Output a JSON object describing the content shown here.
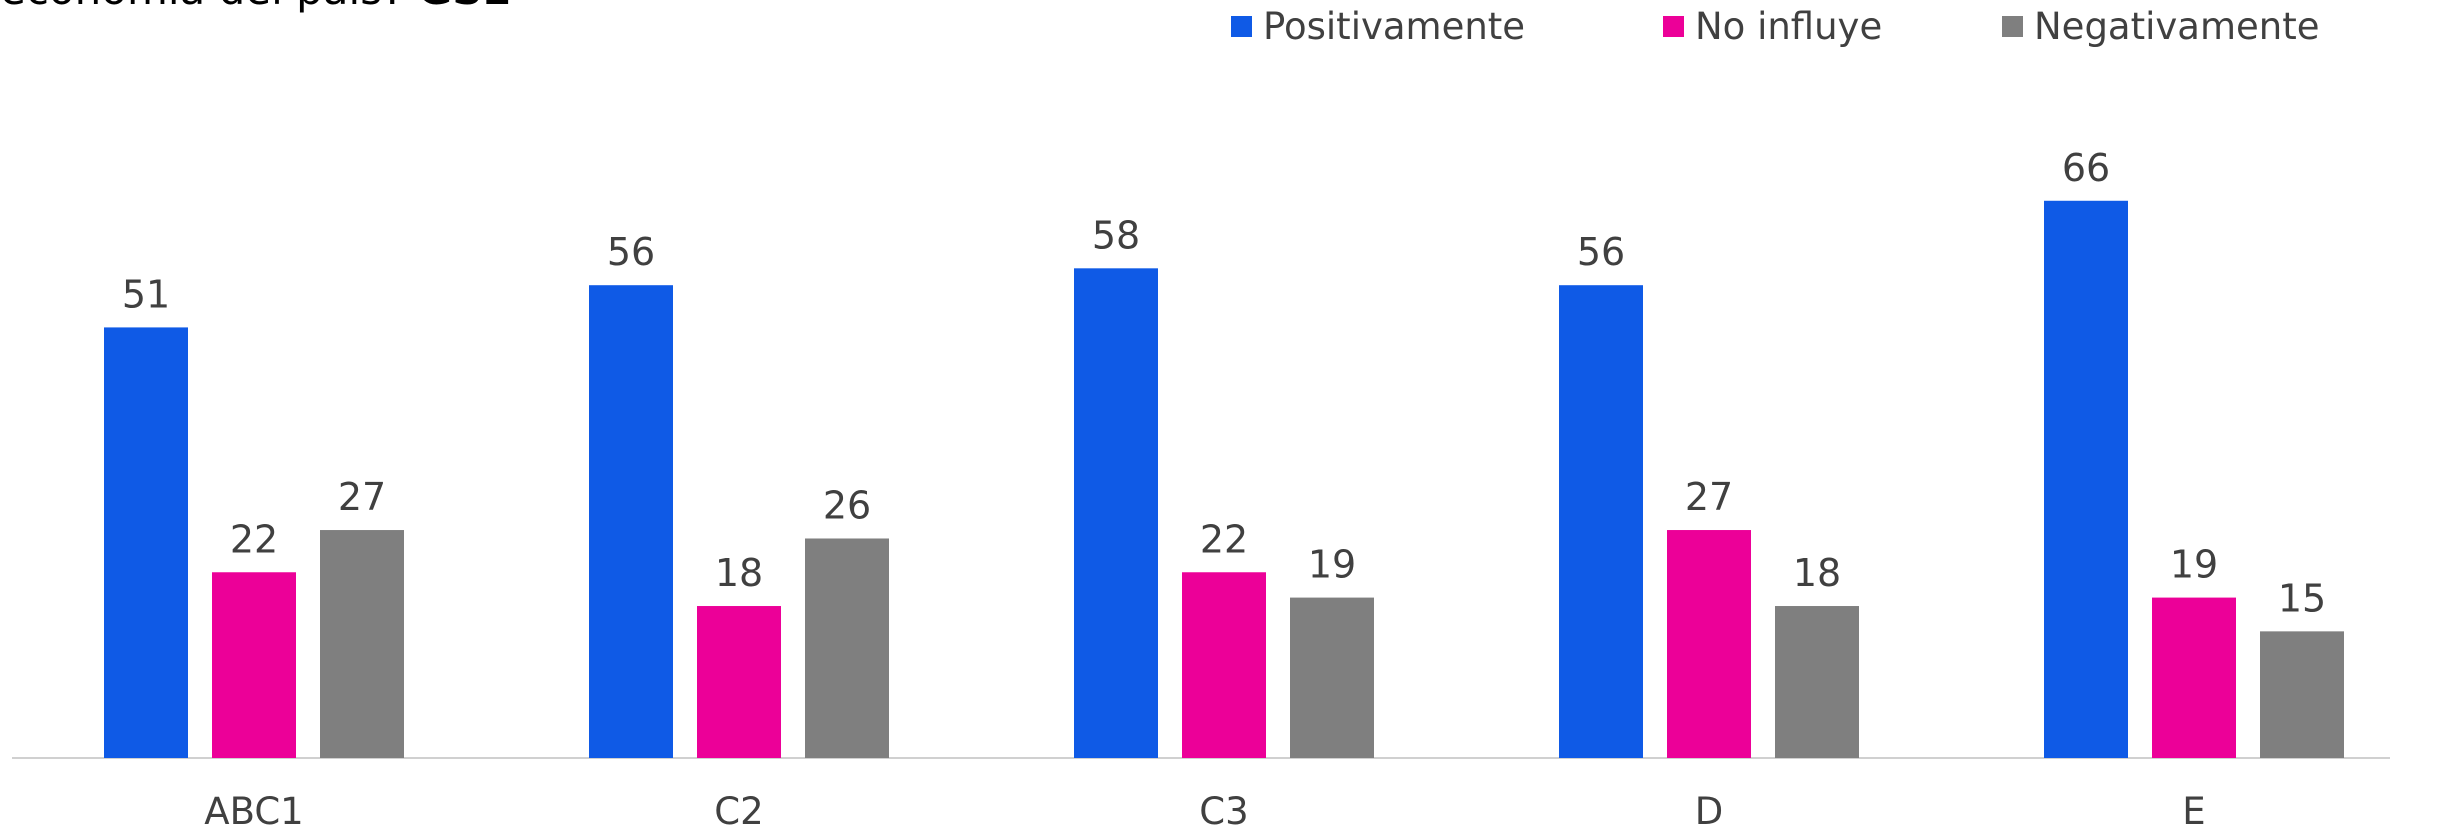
{
  "chart_data": {
    "type": "bar",
    "title": "economía del país?",
    "title_emphasis": "GSE",
    "categories": [
      "ABC1",
      "C2",
      "C3",
      "D",
      "E"
    ],
    "series": [
      {
        "name": "Positivamente",
        "color": "#0f5ae6",
        "values": [
          51,
          56,
          58,
          56,
          66
        ]
      },
      {
        "name": "No influye",
        "color": "#ec0098",
        "values": [
          22,
          18,
          22,
          27,
          19
        ]
      },
      {
        "name": "Negativamente",
        "color": "#7f7f7f",
        "values": [
          27,
          26,
          19,
          18,
          15
        ]
      }
    ],
    "ylim": [
      0,
      70
    ],
    "legend": "top-right",
    "grid": false
  }
}
